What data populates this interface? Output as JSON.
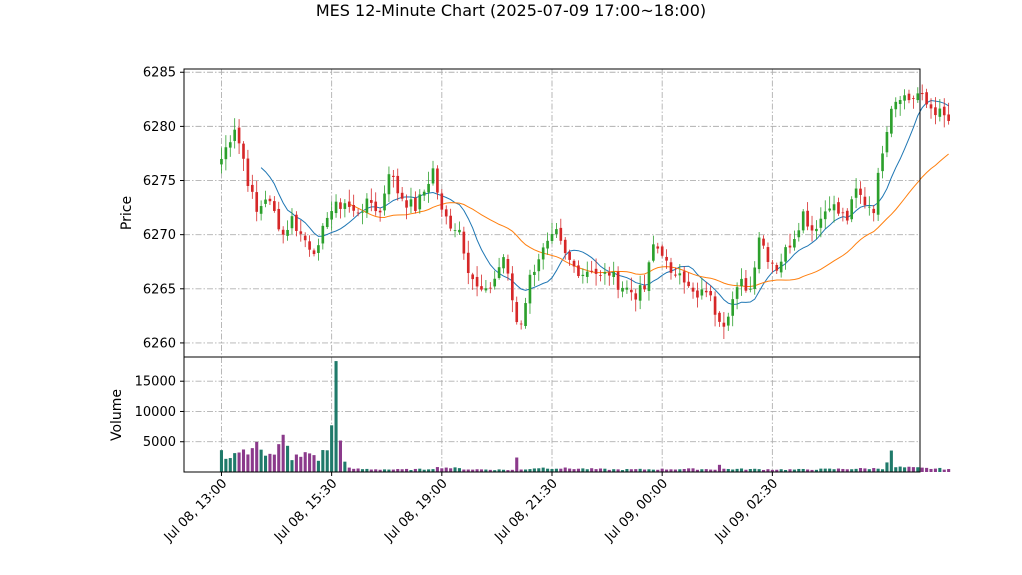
{
  "chart_data": {
    "type": "candlestick",
    "title": "MES 12-Minute Chart (2025-07-09 17:00~18:00)",
    "price_panel": {
      "ylabel": "Price",
      "ylim": [
        6258.7,
        6285.3
      ],
      "yticks": [
        6260,
        6265,
        6270,
        6275,
        6280,
        6285
      ],
      "grid": true
    },
    "volume_panel": {
      "ylabel": "Volume",
      "ylim": [
        0,
        19000
      ],
      "yticks": [
        5000,
        10000,
        15000
      ],
      "ytick_labels": [
        "5000",
        "10000",
        "15000"
      ],
      "grid": true
    },
    "x_axis": {
      "tick_labels": [
        "Jul 08, 13:00",
        "Jul 08, 15:30",
        "Jul 08, 19:00",
        "Jul 08, 21:30",
        "Jul 09, 00:00",
        "Jul 09, 02:30"
      ],
      "tick_positions": [
        0,
        25,
        50,
        75,
        100,
        125
      ],
      "label_rotation": 45,
      "xlim": [
        -8.5,
        158.5
      ]
    },
    "colors": {
      "up": "#2ca02c",
      "down": "#d62728",
      "ma_short": "#1f77b4",
      "ma_long": "#ff7f0e",
      "volume_up": "#1f7a6a",
      "volume_down": "#8b3a8b"
    },
    "moving_averages": [
      {
        "color": "#1f77b4",
        "window": 10
      },
      {
        "color": "#ff7f0e",
        "window": 30
      }
    ],
    "anchors_close": [
      [
        0,
        6277
      ],
      [
        3,
        6280
      ],
      [
        5,
        6277
      ],
      [
        6,
        6275
      ],
      [
        8,
        6272
      ],
      [
        10,
        6273.5
      ],
      [
        12,
        6272
      ],
      [
        14,
        6270
      ],
      [
        16,
        6271.5
      ],
      [
        18,
        6270
      ],
      [
        20,
        6269
      ],
      [
        22,
        6268.5
      ],
      [
        24,
        6272
      ],
      [
        26,
        6272.5
      ],
      [
        28,
        6273
      ],
      [
        30,
        6272
      ],
      [
        32,
        6272.5
      ],
      [
        34,
        6273
      ],
      [
        36,
        6272
      ],
      [
        38,
        6276
      ],
      [
        40,
        6274
      ],
      [
        42,
        6273
      ],
      [
        44,
        6272.5
      ],
      [
        46,
        6274
      ],
      [
        48,
        6276
      ],
      [
        50,
        6272
      ],
      [
        52,
        6271
      ],
      [
        54,
        6270.5
      ],
      [
        56,
        6267
      ],
      [
        58,
        6265
      ],
      [
        60,
        6264.5
      ],
      [
        62,
        6266
      ],
      [
        64,
        6268
      ],
      [
        66,
        6264
      ],
      [
        67,
        6262
      ],
      [
        68,
        6262
      ],
      [
        70,
        6266
      ],
      [
        72,
        6268
      ],
      [
        74,
        6269
      ],
      [
        76,
        6270
      ],
      [
        78,
        6268
      ],
      [
        80,
        6267
      ],
      [
        82,
        6266.5
      ],
      [
        84,
        6267
      ],
      [
        86,
        6266
      ],
      [
        88,
        6266.5
      ],
      [
        90,
        6265.5
      ],
      [
        92,
        6265
      ],
      [
        94,
        6264.5
      ],
      [
        96,
        6265
      ],
      [
        98,
        6269
      ],
      [
        100,
        6268.5
      ],
      [
        102,
        6266
      ],
      [
        104,
        6267
      ],
      [
        106,
        6265
      ],
      [
        108,
        6264
      ],
      [
        110,
        6265
      ],
      [
        112,
        6263
      ],
      [
        114,
        6262
      ],
      [
        116,
        6264
      ],
      [
        118,
        6265.5
      ],
      [
        120,
        6265
      ],
      [
        122,
        6270
      ],
      [
        124,
        6268
      ],
      [
        126,
        6267
      ],
      [
        128,
        6268.5
      ],
      [
        130,
        6270
      ],
      [
        132,
        6272
      ],
      [
        134,
        6270.5
      ],
      [
        136,
        6271.5
      ],
      [
        138,
        6273
      ],
      [
        140,
        6272
      ],
      [
        142,
        6271.5
      ],
      [
        144,
        6274
      ],
      [
        146,
        6273
      ],
      [
        148,
        6272.5
      ],
      [
        150,
        6278
      ],
      [
        152,
        6282
      ],
      [
        154,
        6283
      ],
      [
        156,
        6282.5
      ],
      [
        158,
        6283
      ],
      [
        160,
        6282
      ],
      [
        162,
        6281.5
      ],
      [
        165,
        6280.5
      ]
    ],
    "volume_anchors": [
      [
        0,
        3200
      ],
      [
        2,
        2500
      ],
      [
        4,
        3500
      ],
      [
        6,
        2800
      ],
      [
        8,
        6000
      ],
      [
        10,
        3000
      ],
      [
        12,
        2600
      ],
      [
        14,
        5500
      ],
      [
        16,
        2400
      ],
      [
        18,
        2500
      ],
      [
        20,
        3200
      ],
      [
        22,
        2200
      ],
      [
        24,
        4000
      ],
      [
        25,
        7000
      ],
      [
        26,
        18000
      ],
      [
        27,
        6500
      ],
      [
        28,
        1500
      ],
      [
        29,
        600
      ],
      [
        31,
        500
      ],
      [
        40,
        400
      ],
      [
        46,
        450
      ],
      [
        50,
        800
      ],
      [
        56,
        450
      ],
      [
        66,
        350
      ],
      [
        67,
        2200
      ],
      [
        68,
        400
      ],
      [
        72,
        700
      ],
      [
        90,
        400
      ],
      [
        106,
        500
      ],
      [
        112,
        450
      ],
      [
        113,
        1200
      ],
      [
        114,
        500
      ],
      [
        130,
        400
      ],
      [
        140,
        500
      ],
      [
        150,
        600
      ],
      [
        152,
        3000
      ],
      [
        153,
        800
      ],
      [
        160,
        600
      ],
      [
        165,
        500
      ]
    ]
  }
}
